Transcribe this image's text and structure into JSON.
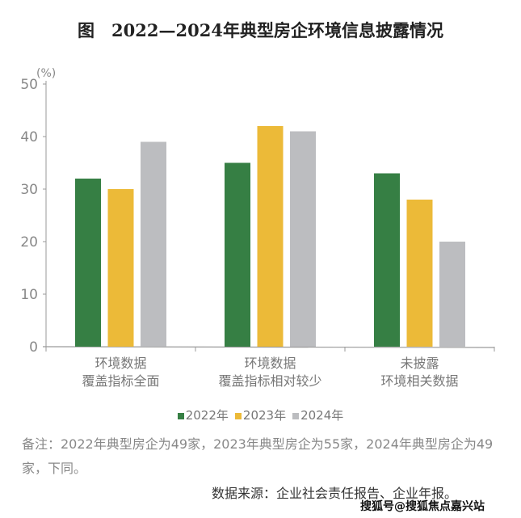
{
  "title": "图　2022—2024年典型房企环境信息披露情况",
  "chart_data": {
    "type": "bar",
    "title": "图　2022—2024年典型房企环境信息披露情况",
    "ylabel": "(%)",
    "ylim": [
      0,
      50
    ],
    "yticks": [
      "0",
      "10",
      "20",
      "30",
      "40",
      "50"
    ],
    "categories": [
      [
        "环境数据",
        "覆盖指标全面"
      ],
      [
        "环境数据",
        "覆盖指标相对较少"
      ],
      [
        "未披露",
        "环境相关数据"
      ]
    ],
    "series": [
      {
        "name": "2022年",
        "color": "#367f44",
        "values": [
          32,
          35,
          33
        ]
      },
      {
        "name": "2023年",
        "color": "#ecba38",
        "values": [
          30,
          42,
          28
        ]
      },
      {
        "name": "2024年",
        "color": "#bcbdc0",
        "values": [
          39,
          41,
          20
        ]
      }
    ],
    "legend": "bottom",
    "grid": false
  },
  "note": "备注：2022年典型房企为49家，2023年典型房企为55家，2024年典型房企为49家，下同。",
  "source": "数据来源：企业社会责任报告、企业年报。",
  "watermark": "搜狐号@搜狐焦点嘉兴站"
}
